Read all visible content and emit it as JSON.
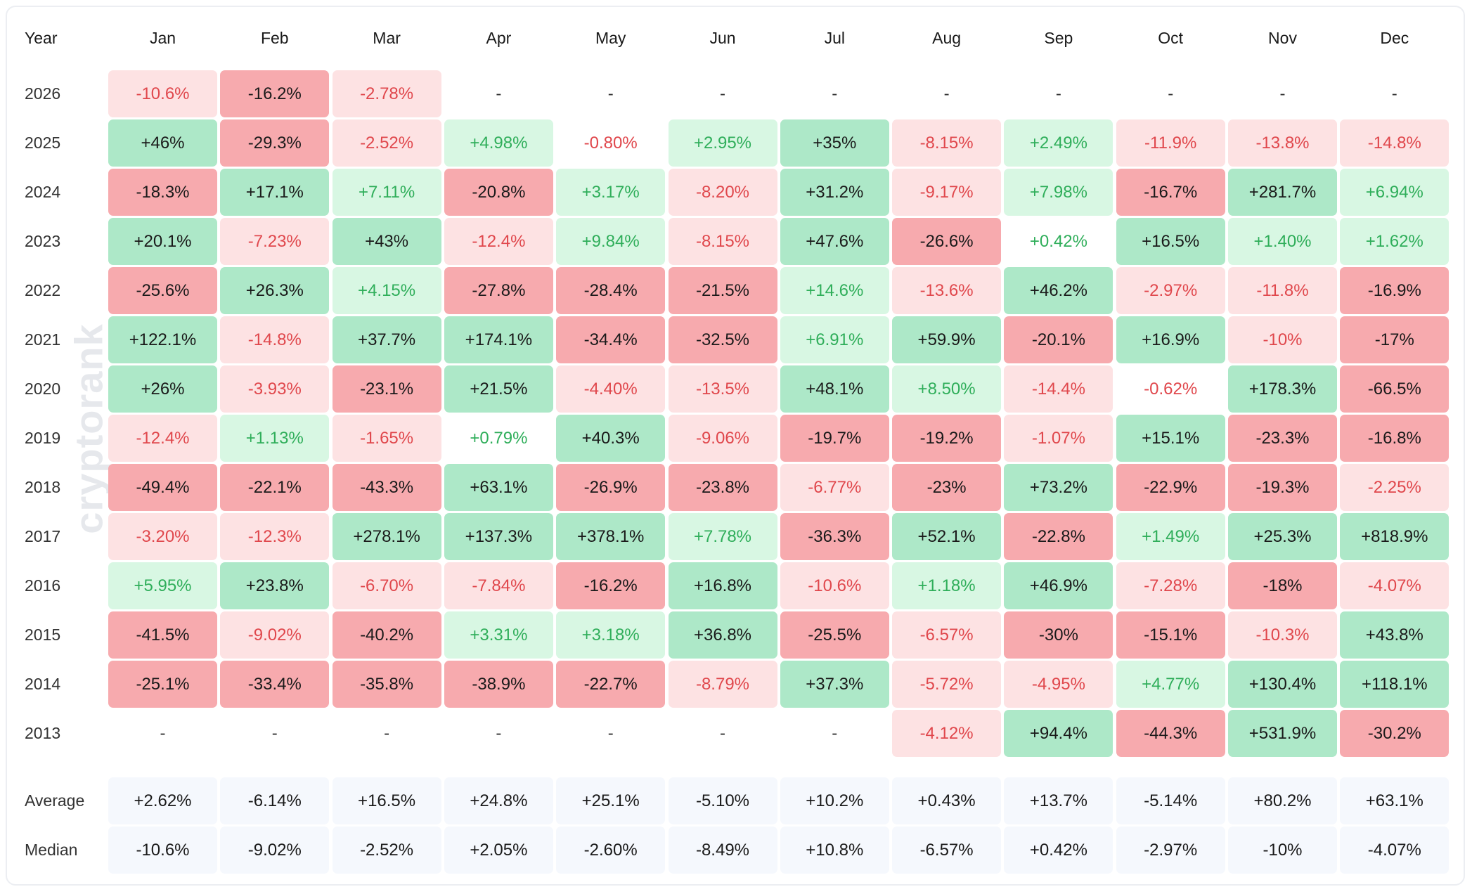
{
  "watermark": "cryptorank",
  "table": {
    "header": [
      "Year",
      "Jan",
      "Feb",
      "Mar",
      "Apr",
      "May",
      "Jun",
      "Jul",
      "Aug",
      "Sep",
      "Oct",
      "Nov",
      "Dec"
    ],
    "rows": [
      [
        "2026",
        "-10.6%",
        "-16.2%",
        "-2.78%",
        "-",
        "-",
        "-",
        "-",
        "-",
        "-",
        "-",
        "-",
        "-"
      ],
      [
        "2025",
        "+46%",
        "-29.3%",
        "-2.52%",
        "+4.98%",
        "-0.80%",
        "+2.95%",
        "+35%",
        "-8.15%",
        "+2.49%",
        "-11.9%",
        "-13.8%",
        "-14.8%"
      ],
      [
        "2024",
        "-18.3%",
        "+17.1%",
        "+7.11%",
        "-20.8%",
        "+3.17%",
        "-8.20%",
        "+31.2%",
        "-9.17%",
        "+7.98%",
        "-16.7%",
        "+281.7%",
        "+6.94%"
      ],
      [
        "2023",
        "+20.1%",
        "-7.23%",
        "+43%",
        "-12.4%",
        "+9.84%",
        "-8.15%",
        "+47.6%",
        "-26.6%",
        "+0.42%",
        "+16.5%",
        "+1.40%",
        "+1.62%"
      ],
      [
        "2022",
        "-25.6%",
        "+26.3%",
        "+4.15%",
        "-27.8%",
        "-28.4%",
        "-21.5%",
        "+14.6%",
        "-13.6%",
        "+46.2%",
        "-2.97%",
        "-11.8%",
        "-16.9%"
      ],
      [
        "2021",
        "+122.1%",
        "-14.8%",
        "+37.7%",
        "+174.1%",
        "-34.4%",
        "-32.5%",
        "+6.91%",
        "+59.9%",
        "-20.1%",
        "+16.9%",
        "-10%",
        "-17%"
      ],
      [
        "2020",
        "+26%",
        "-3.93%",
        "-23.1%",
        "+21.5%",
        "-4.40%",
        "-13.5%",
        "+48.1%",
        "+8.50%",
        "-14.4%",
        "-0.62%",
        "+178.3%",
        "-66.5%"
      ],
      [
        "2019",
        "-12.4%",
        "+1.13%",
        "-1.65%",
        "+0.79%",
        "+40.3%",
        "-9.06%",
        "-19.7%",
        "-19.2%",
        "-1.07%",
        "+15.1%",
        "-23.3%",
        "-16.8%"
      ],
      [
        "2018",
        "-49.4%",
        "-22.1%",
        "-43.3%",
        "+63.1%",
        "-26.9%",
        "-23.8%",
        "-6.77%",
        "-23%",
        "+73.2%",
        "-22.9%",
        "-19.3%",
        "-2.25%"
      ],
      [
        "2017",
        "-3.20%",
        "-12.3%",
        "+278.1%",
        "+137.3%",
        "+378.1%",
        "+7.78%",
        "-36.3%",
        "+52.1%",
        "-22.8%",
        "+1.49%",
        "+25.3%",
        "+818.9%"
      ],
      [
        "2016",
        "+5.95%",
        "+23.8%",
        "-6.70%",
        "-7.84%",
        "-16.2%",
        "+16.8%",
        "-10.6%",
        "+1.18%",
        "+46.9%",
        "-7.28%",
        "-18%",
        "-4.07%"
      ],
      [
        "2015",
        "-41.5%",
        "-9.02%",
        "-40.2%",
        "+3.31%",
        "+3.18%",
        "+36.8%",
        "-25.5%",
        "-6.57%",
        "-30%",
        "-15.1%",
        "-10.3%",
        "+43.8%"
      ],
      [
        "2014",
        "-25.1%",
        "-33.4%",
        "-35.8%",
        "-38.9%",
        "-22.7%",
        "-8.79%",
        "+37.3%",
        "-5.72%",
        "-4.95%",
        "+4.77%",
        "+130.4%",
        "+118.1%"
      ],
      [
        "2013",
        "-",
        "-",
        "-",
        "-",
        "-",
        "-",
        "-",
        "-4.12%",
        "+94.4%",
        "-44.3%",
        "+531.9%",
        "-30.2%"
      ]
    ],
    "summary": [
      [
        "Average",
        "+2.62%",
        "-6.14%",
        "+16.5%",
        "+24.8%",
        "+25.1%",
        "-5.10%",
        "+10.2%",
        "+0.43%",
        "+13.7%",
        "-5.14%",
        "+80.2%",
        "+63.1%"
      ],
      [
        "Median",
        "-10.6%",
        "-9.02%",
        "-2.52%",
        "+2.05%",
        "-2.60%",
        "-8.49%",
        "+10.8%",
        "-6.57%",
        "+0.42%",
        "-2.97%",
        "-10%",
        "-4.07%"
      ]
    ]
  }
}
